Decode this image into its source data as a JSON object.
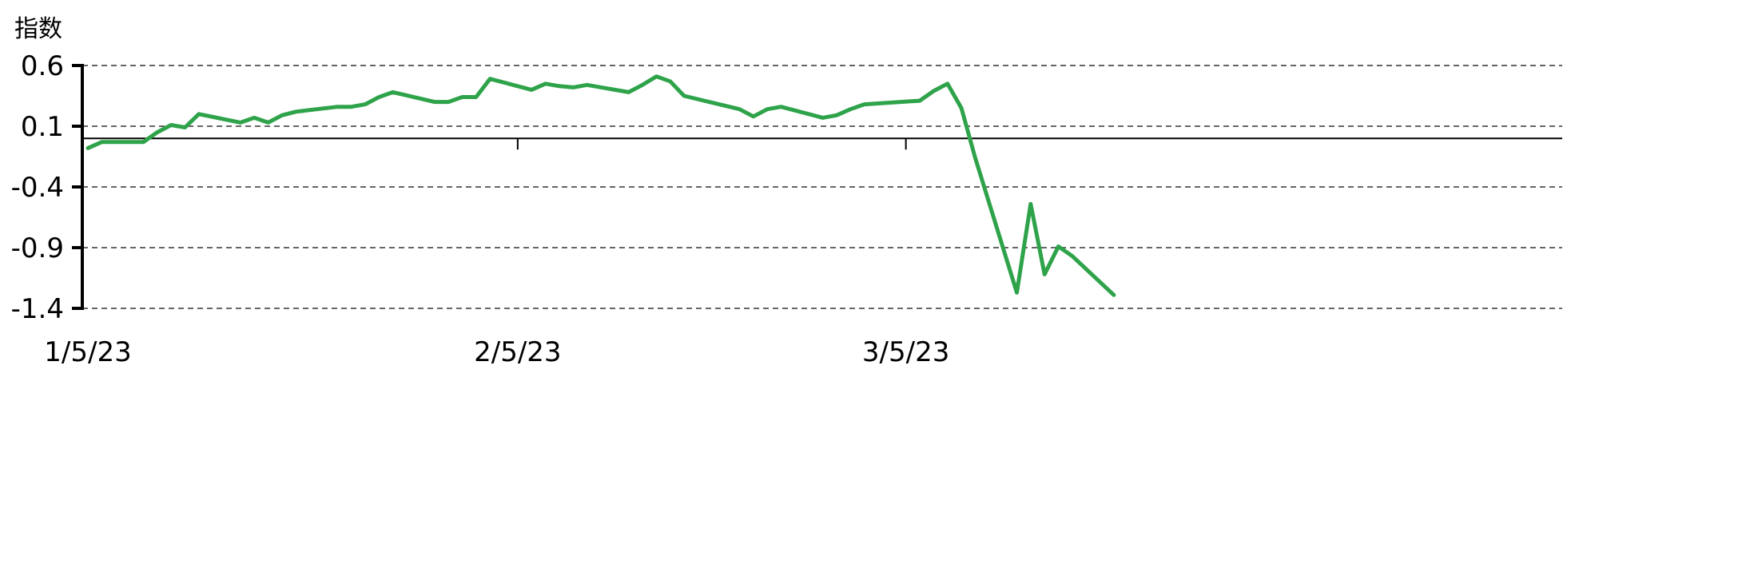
{
  "chart_data": {
    "type": "line",
    "ylabel": "指数",
    "xlabel": "",
    "ylim": [
      -1.4,
      0.6
    ],
    "yticks": [
      0.6,
      0.1,
      -0.4,
      -0.9,
      -1.4
    ],
    "ytick_labels": [
      "0.6",
      "0.1",
      "-0.4",
      "-0.9",
      "-1.4"
    ],
    "xticks": [
      "2023-01-05",
      "2023-02-05",
      "2023-03-05"
    ],
    "xtick_labels": [
      "1/5/23",
      "2/5/23",
      "3/5/23"
    ],
    "xlim": [
      "2023-01-05",
      "2023-03-20"
    ],
    "grid": "horizontal dashed",
    "baseline": 0,
    "line_color": "#2ea34a",
    "series": [
      {
        "x": [
          "2023-01-05",
          "2023-01-06",
          "2023-01-09",
          "2023-01-10",
          "2023-01-11",
          "2023-01-12",
          "2023-01-13",
          "2023-01-16",
          "2023-01-17",
          "2023-01-18",
          "2023-01-19",
          "2023-01-20",
          "2023-01-23",
          "2023-01-24",
          "2023-01-25",
          "2023-01-26",
          "2023-01-27",
          "2023-01-30",
          "2023-01-31",
          "2023-02-01",
          "2023-02-02",
          "2023-02-03",
          "2023-02-06",
          "2023-02-07",
          "2023-02-08",
          "2023-02-09",
          "2023-02-10",
          "2023-02-13",
          "2023-02-14",
          "2023-02-15",
          "2023-02-16",
          "2023-02-17",
          "2023-02-21",
          "2023-02-22",
          "2023-02-23",
          "2023-02-24",
          "2023-02-27",
          "2023-02-28",
          "2023-03-01",
          "2023-03-02",
          "2023-03-06",
          "2023-03-07",
          "2023-03-08",
          "2023-03-09",
          "2023-03-10",
          "2023-03-13",
          "2023-03-14",
          "2023-03-15",
          "2023-03-16",
          "2023-03-17",
          "2023-03-20"
        ],
        "y": [
          -0.08,
          -0.03,
          -0.03,
          0.05,
          0.11,
          0.09,
          0.2,
          0.13,
          0.17,
          0.13,
          0.19,
          0.22,
          0.26,
          0.26,
          0.28,
          0.34,
          0.38,
          0.3,
          0.3,
          0.34,
          0.34,
          0.49,
          0.4,
          0.45,
          0.43,
          0.42,
          0.44,
          0.38,
          0.44,
          0.51,
          0.47,
          0.35,
          0.24,
          0.18,
          0.24,
          0.26,
          0.17,
          0.19,
          0.24,
          0.28,
          0.31,
          0.39,
          0.45,
          0.25,
          -0.16,
          -1.27,
          -0.54,
          -1.12,
          -0.89,
          -0.97,
          -1.29
        ]
      }
    ]
  }
}
